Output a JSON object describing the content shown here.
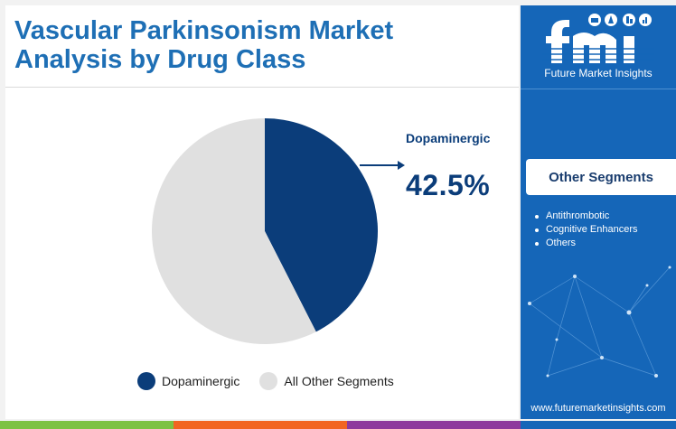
{
  "header": {
    "title_line1": "Vascular Parkinsonism Market",
    "title_line2": "Analysis by Drug Class"
  },
  "chart_data": {
    "type": "pie",
    "slices": [
      {
        "label": "Dopaminergic",
        "value": 42.5,
        "color": "#0b3d7a"
      },
      {
        "label": "All Other Segments",
        "value": 57.5,
        "color": "#e0e0e0"
      }
    ],
    "legend": [
      "Dopaminergic",
      "All Other Segments"
    ],
    "legend_position": "bottom",
    "annotations": [
      {
        "label": "Dopaminergic",
        "value_text": "42.5%"
      }
    ]
  },
  "colors": {
    "title": "#1e6fb5",
    "accent_dark": "#0b3d7a",
    "panel_blue": "#1566b8",
    "bar_green": "#7dc242",
    "bar_orange": "#f26522",
    "bar_purple": "#8e3a9d"
  },
  "brand": {
    "logo_text": "fmi",
    "name": "Future Market Insights",
    "url": "www.futuremarketinsights.com"
  },
  "sidebar": {
    "heading": "Other Segments",
    "items": [
      "Antithrombotic",
      "Cognitive Enhancers",
      "Others"
    ]
  }
}
